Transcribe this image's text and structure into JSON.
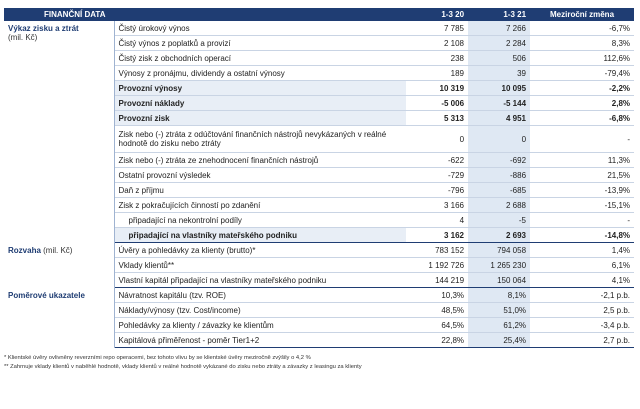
{
  "header": {
    "title": "FINANČNÍ DATA",
    "col1": "1-3 20",
    "col2": "1-3 21",
    "col3": "Meziroční změna"
  },
  "sections": [
    {
      "label": "Výkaz zisku a ztrát",
      "unit": "(mil. Kč)",
      "unit_position": "below",
      "rows": [
        {
          "label": "Čistý úrokový výnos",
          "values": [
            "7 785",
            "7 266",
            "-6,7%"
          ]
        },
        {
          "label": "Čistý výnos z poplatků a provizí",
          "values": [
            "2 108",
            "2 284",
            "8,3%"
          ]
        },
        {
          "label": "Čistý zisk z obchodních operací",
          "values": [
            "238",
            "506",
            "112,6%"
          ]
        },
        {
          "label": "Výnosy z pronájmu, dividendy a ostatní výnosy",
          "values": [
            "189",
            "39",
            "-79,4%"
          ]
        },
        {
          "label": "Provozní výnosy",
          "values": [
            "10 319",
            "10 095",
            "-2,2%"
          ],
          "bold": true
        },
        {
          "label": "Provozní náklady",
          "values": [
            "-5 006",
            "-5 144",
            "2,8%"
          ],
          "bold": true
        },
        {
          "label": "Provozní zisk",
          "values": [
            "5 313",
            "4 951",
            "-6,8%"
          ],
          "bold": true
        },
        {
          "label": "Zisk nebo (-) ztráta z odúčtování finančních nástrojů nevykázaných v reálné hodnotě do zisku nebo ztráty",
          "values": [
            "0",
            "0",
            "-"
          ],
          "tall": true
        },
        {
          "label": "Zisk nebo (-) ztráta ze znehodnocení finančních nástrojů",
          "values": [
            "-622",
            "-692",
            "11,3%"
          ]
        },
        {
          "label": "Ostatní provozní výsledek",
          "values": [
            "-729",
            "-886",
            "21,5%"
          ]
        },
        {
          "label": "Daň z příjmu",
          "values": [
            "-796",
            "-685",
            "-13,9%"
          ]
        },
        {
          "label": "Zisk z pokračujících činností po zdanění",
          "values": [
            "3 166",
            "2 688",
            "-15,1%"
          ]
        },
        {
          "label": "připadající na nekontrolní podíly",
          "values": [
            "4",
            "-5",
            "-"
          ],
          "indent": true
        },
        {
          "label": "připadající na vlastníky mateřského podniku",
          "values": [
            "3 162",
            "2 693",
            "-14,8%"
          ],
          "indent": true,
          "bold": true
        }
      ]
    },
    {
      "label": "Rozvaha",
      "unit": "(mil. Kč)",
      "unit_position": "inline",
      "rows": [
        {
          "label": "Úvěry a pohledávky za klienty (brutto)*",
          "values": [
            "783 152",
            "794 058",
            "1,4%"
          ]
        },
        {
          "label": "Vklady klientů**",
          "values": [
            "1 192 726",
            "1 265 230",
            "6,1%"
          ]
        },
        {
          "label": "Vlastní kapitál připadající na vlastníky mateřského podniku",
          "values": [
            "144 219",
            "150 064",
            "4,1%"
          ]
        }
      ]
    },
    {
      "label": "Poměrové ukazatele",
      "rows": [
        {
          "label": "Návratnost kapitálu (tzv. ROE)",
          "values": [
            "10,3%",
            "8,1%",
            "-2,1 p.b."
          ]
        },
        {
          "label": "Náklady/výnosy (tzv. Cost/income)",
          "values": [
            "48,5%",
            "51,0%",
            "2,5 p.b."
          ]
        },
        {
          "label": "Pohledávky za klienty / závazky ke klientům",
          "values": [
            "64,5%",
            "61,2%",
            "-3,4 p.b."
          ]
        },
        {
          "label": "Kapitálová přiměřenost - poměr Tier1+2",
          "values": [
            "22,8%",
            "25,4%",
            "2,7 p.b."
          ]
        }
      ]
    }
  ],
  "footnotes": [
    "* Klientské úvěry ovlivněny reverzními repo operacemi, bez tohoto vlivu by se klientské úvěry meziročně zvýšily o 4,2 %",
    "** Zahrnuje vklady klientů v naběhlé hodnotě, vklady klientů v reálné hodnotě vykázané do zisku nebo ztráty a závazky z leasingu za klienty"
  ]
}
